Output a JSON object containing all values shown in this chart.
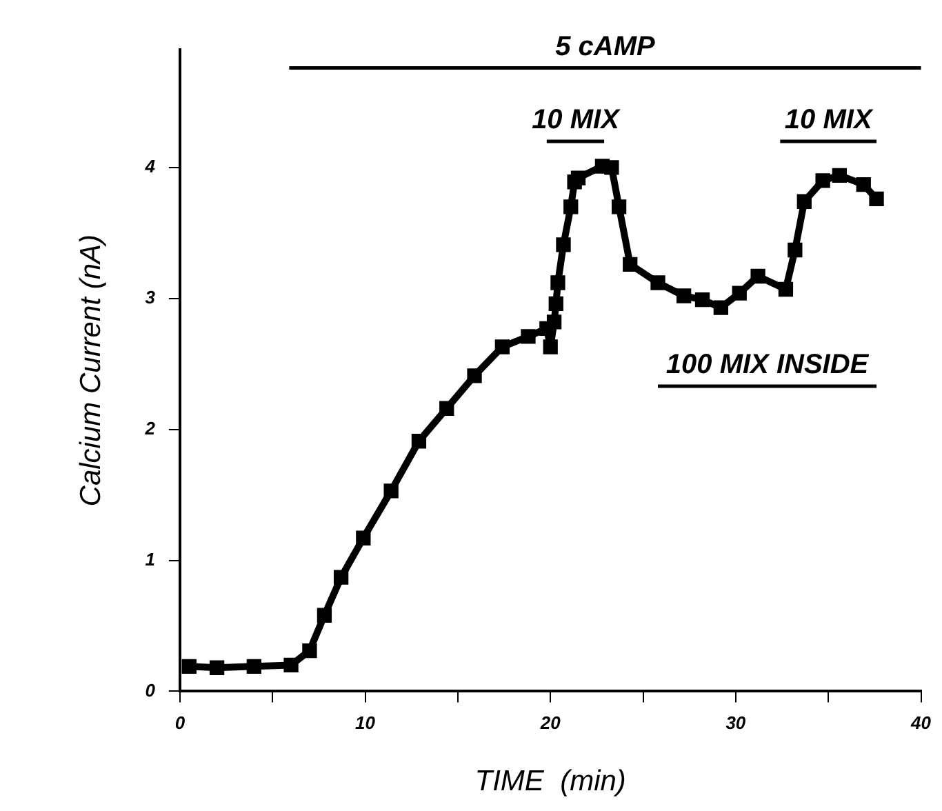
{
  "chart_data": {
    "type": "line",
    "xlabel": "TIME  (min)",
    "ylabel": "Calcium Current (nA)",
    "x": [
      0.5,
      2,
      4,
      6,
      7,
      7.8,
      8.7,
      9.9,
      11.4,
      12.9,
      14.4,
      15.9,
      17.4,
      18.8,
      19.8,
      20,
      20.2,
      20.3,
      20.4,
      20.7,
      21.1,
      21.3,
      21.5,
      22.8,
      23.3,
      23.7,
      24.3,
      25.8,
      27.2,
      28.2,
      29.2,
      30.2,
      31.2,
      32.7,
      33.2,
      33.7,
      34.7,
      35.6,
      36.9,
      37.6
    ],
    "series": [
      {
        "color": "#000000",
        "values": [
          0.19,
          0.18,
          0.19,
          0.2,
          0.31,
          0.58,
          0.87,
          1.17,
          1.53,
          1.91,
          2.16,
          2.41,
          2.63,
          2.71,
          2.77,
          2.63,
          2.82,
          2.96,
          3.12,
          3.41,
          3.7,
          3.89,
          3.92,
          4.01,
          4.0,
          3.7,
          3.26,
          3.12,
          3.02,
          2.99,
          2.93,
          3.04,
          3.17,
          3.07,
          3.37,
          3.74,
          3.9,
          3.94,
          3.87,
          3.76
        ]
      },
      {
        "name": "5 cAMP",
        "color": "#000000",
        "marker": "none",
        "x": [
          5.9,
          40
        ],
        "values": [
          4.76,
          4.76
        ]
      },
      {
        "name": "10 MIX",
        "color": "#000000",
        "marker": "none",
        "x": [
          19.8,
          22.9
        ],
        "values": [
          4.2,
          4.2
        ]
      },
      {
        "name": "10 MIX",
        "color": "#000000",
        "marker": "none",
        "x": [
          32.4,
          37.6
        ],
        "values": [
          4.2,
          4.2
        ]
      },
      {
        "name": "100 MIX INSIDE",
        "color": "#000000",
        "marker": "none",
        "x": [
          25.8,
          37.6
        ],
        "values": [
          2.33,
          2.33
        ]
      }
    ],
    "xlim": [
      0,
      40
    ],
    "ylim": [
      0,
      4.9
    ],
    "xticks": [
      0,
      {
        "value": 5,
        "label": null
      },
      10,
      {
        "value": 15,
        "label": null
      },
      20,
      {
        "value": 25,
        "label": null
      },
      30,
      {
        "value": 35,
        "label": null
      },
      40
    ],
    "yticks": [
      0,
      1,
      2,
      3,
      4
    ],
    "grid": false,
    "legend": false,
    "marker": "square",
    "line_style": "solid"
  }
}
